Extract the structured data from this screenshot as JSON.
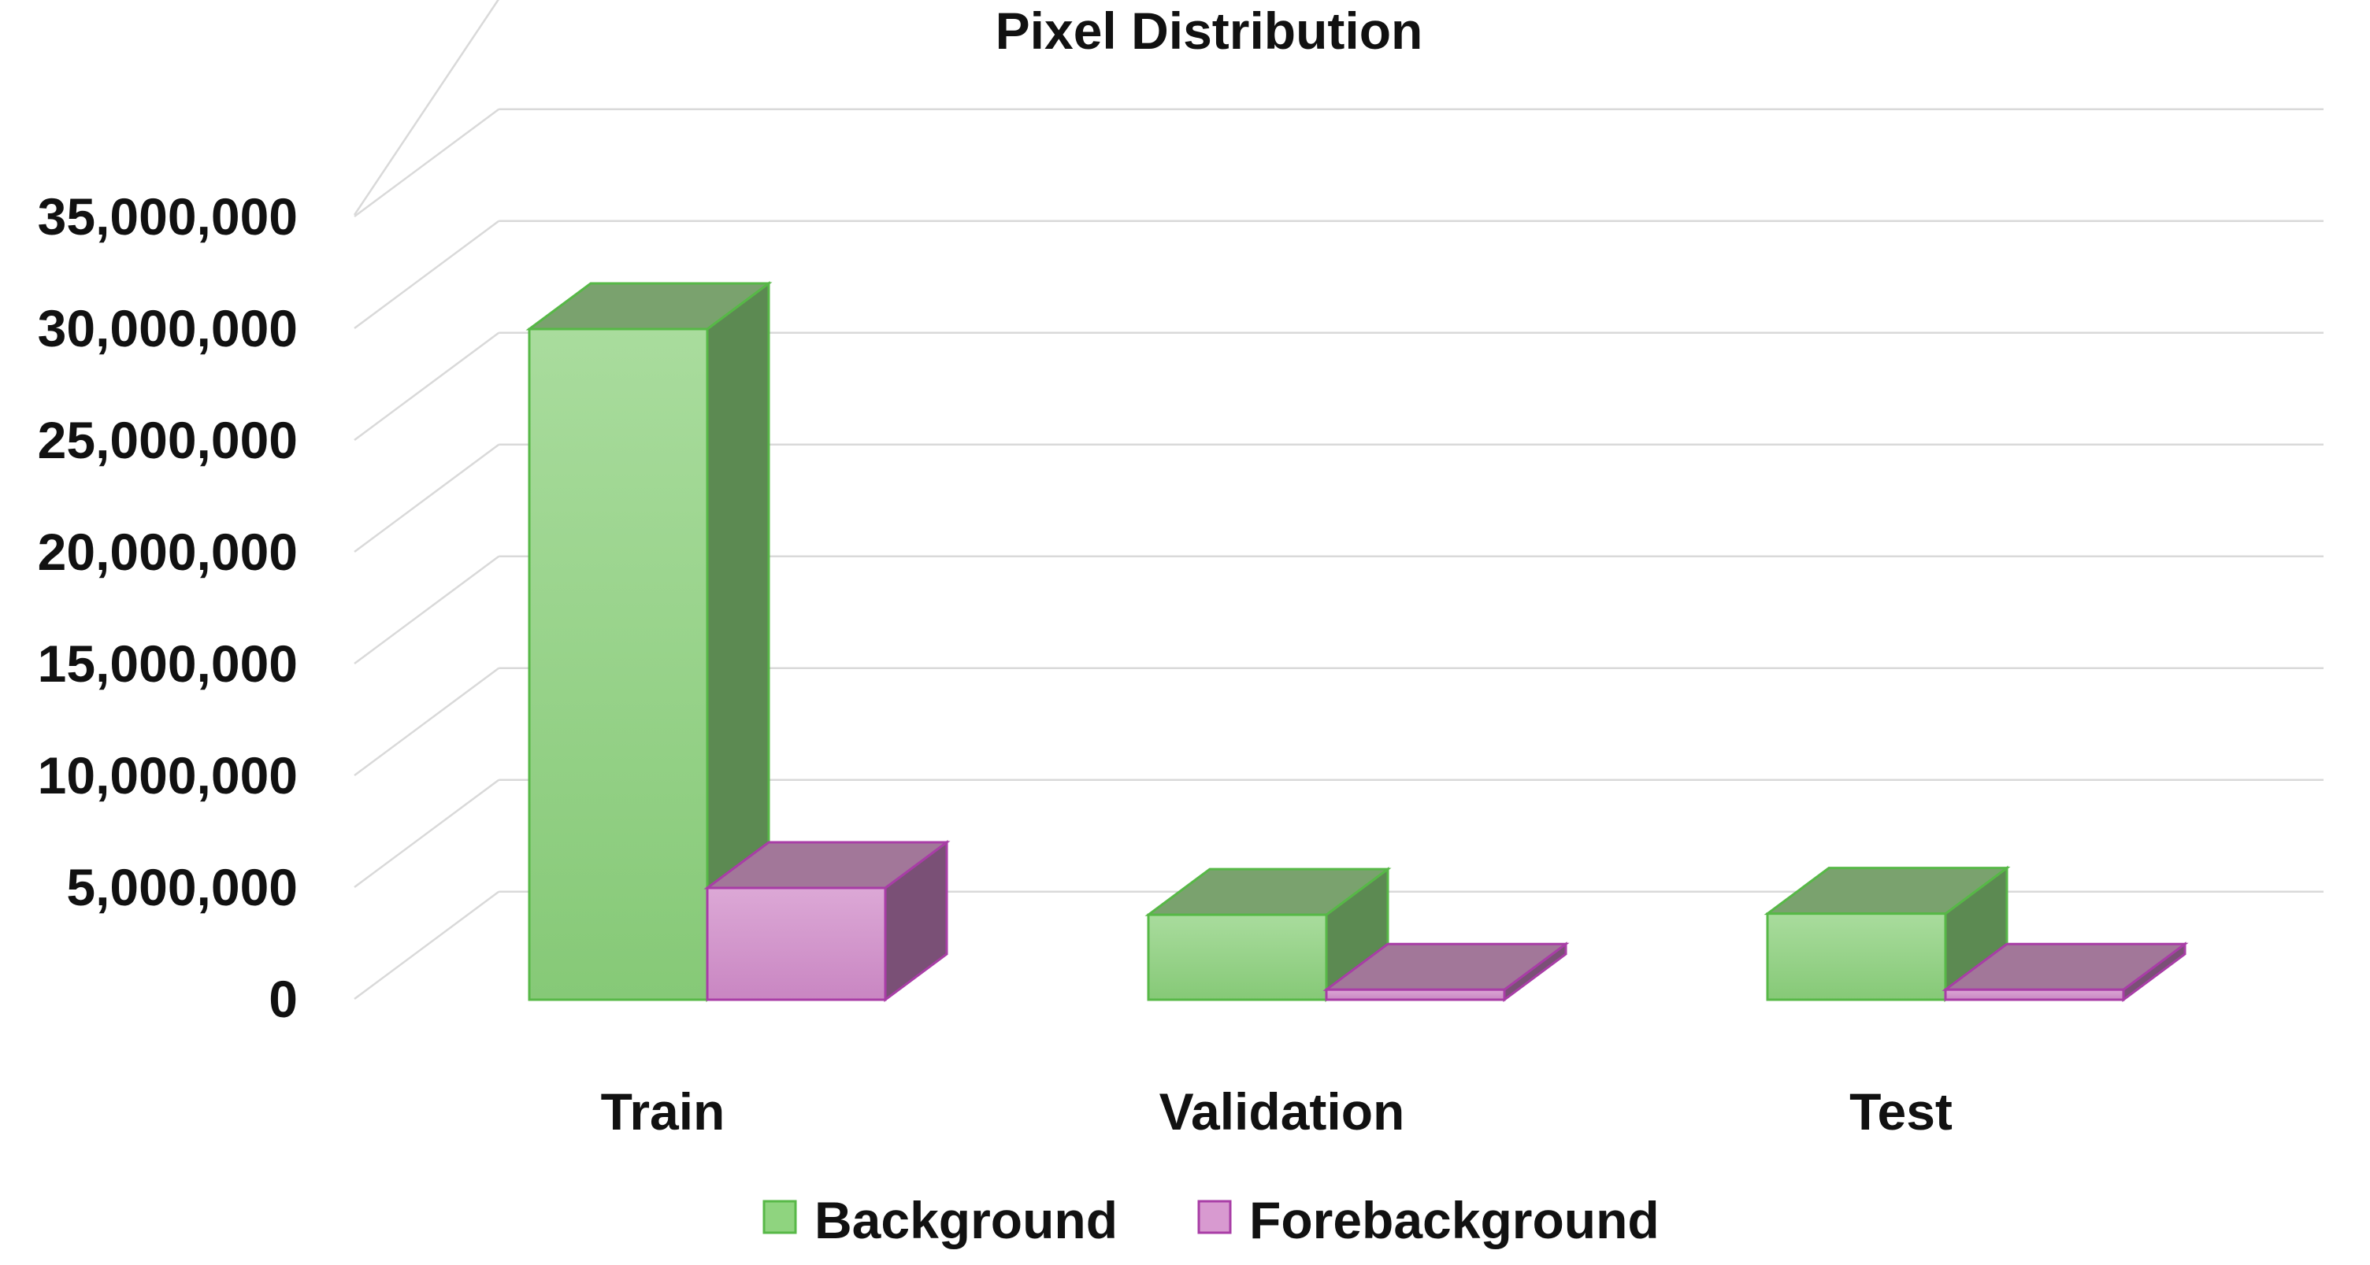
{
  "chart_data": {
    "type": "bar",
    "style": "3d-clustered-column",
    "title": "Pixel Distribution",
    "xlabel": "",
    "ylabel": "",
    "categories": [
      "Train",
      "Validation",
      "Test"
    ],
    "series": [
      {
        "name": "Background",
        "values": [
          30000000,
          3800000,
          3850000
        ],
        "color": "#8fd47f"
      },
      {
        "name": "Forebackground",
        "values": [
          5000000,
          450000,
          450000
        ],
        "color": "#d89ad0"
      }
    ],
    "y_ticks": [
      "0",
      "5,000,000",
      "10,000,000",
      "15,000,000",
      "20,000,000",
      "25,000,000",
      "30,000,000",
      "35,000,000"
    ],
    "ylim": [
      0,
      35000000
    ],
    "grid": true,
    "legend": "bottom"
  },
  "colors": {
    "background_series": "#8fd47f",
    "background_edge": "#57b847",
    "forebackground_series": "#d89ad0",
    "forebackground_edge": "#a83da6",
    "gridline": "#d9d9d9"
  }
}
